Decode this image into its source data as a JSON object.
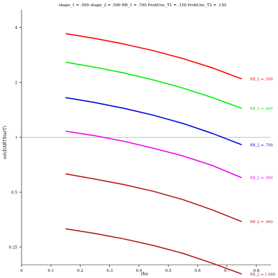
{
  "chart_data": {
    "type": "line",
    "title": "shape_1 = .500  shape_2 = .500  RR_1 = .700  ProbUnc_T1 = .150  ProbUnc_T2 = .150",
    "xlabel": "rho",
    "ylabel": "est(EARTStarT)",
    "x_scale": "linear",
    "y_scale": "log",
    "xlim": [
      0,
      0.85
    ],
    "ylim": [
      0.2,
      5
    ],
    "x_ticks": [
      0,
      0.1,
      0.2,
      0.3,
      0.4,
      0.5,
      0.6,
      0.7,
      0.8
    ],
    "x_tick_labels": [
      "0",
      "0.1",
      "0.2",
      "0.3",
      "0.4",
      "0.5",
      "0.6",
      "0.7",
      "0.8"
    ],
    "y_ticks": [
      0.25,
      0.5,
      1,
      2,
      4
    ],
    "y_tick_labels": [
      "0.25",
      "0.5",
      "1",
      "2",
      "4"
    ],
    "reference_line_y": 1,
    "x": [
      0.15,
      0.25,
      0.35,
      0.45,
      0.55,
      0.65,
      0.75
    ],
    "series": [
      {
        "name": "RR_2 = .500",
        "color": "#ff0000",
        "values": [
          3.7,
          3.48,
          3.24,
          2.98,
          2.7,
          2.4,
          2.09
        ]
      },
      {
        "name": "RR_2 = .600",
        "color": "#00ee00",
        "values": [
          2.58,
          2.42,
          2.25,
          2.06,
          1.86,
          1.65,
          1.44
        ]
      },
      {
        "name": "RR_2 = .700",
        "color": "#0000dd",
        "values": [
          1.65,
          1.55,
          1.44,
          1.32,
          1.19,
          1.05,
          0.91
        ]
      },
      {
        "name": "RR_2 = .800",
        "color": "#ee00ee",
        "values": [
          1.08,
          1.02,
          0.95,
          0.87,
          0.79,
          0.7,
          0.6
        ]
      },
      {
        "name": "RR_2 = .900",
        "color": "#b21d1d",
        "values": [
          0.63,
          0.59,
          0.55,
          0.505,
          0.455,
          0.4,
          0.345
        ]
      },
      {
        "name": "RR_2 = 1.000",
        "color": "#b21d1d",
        "values": [
          0.315,
          0.297,
          0.277,
          0.255,
          0.231,
          0.204,
          0.178
        ]
      }
    ]
  }
}
